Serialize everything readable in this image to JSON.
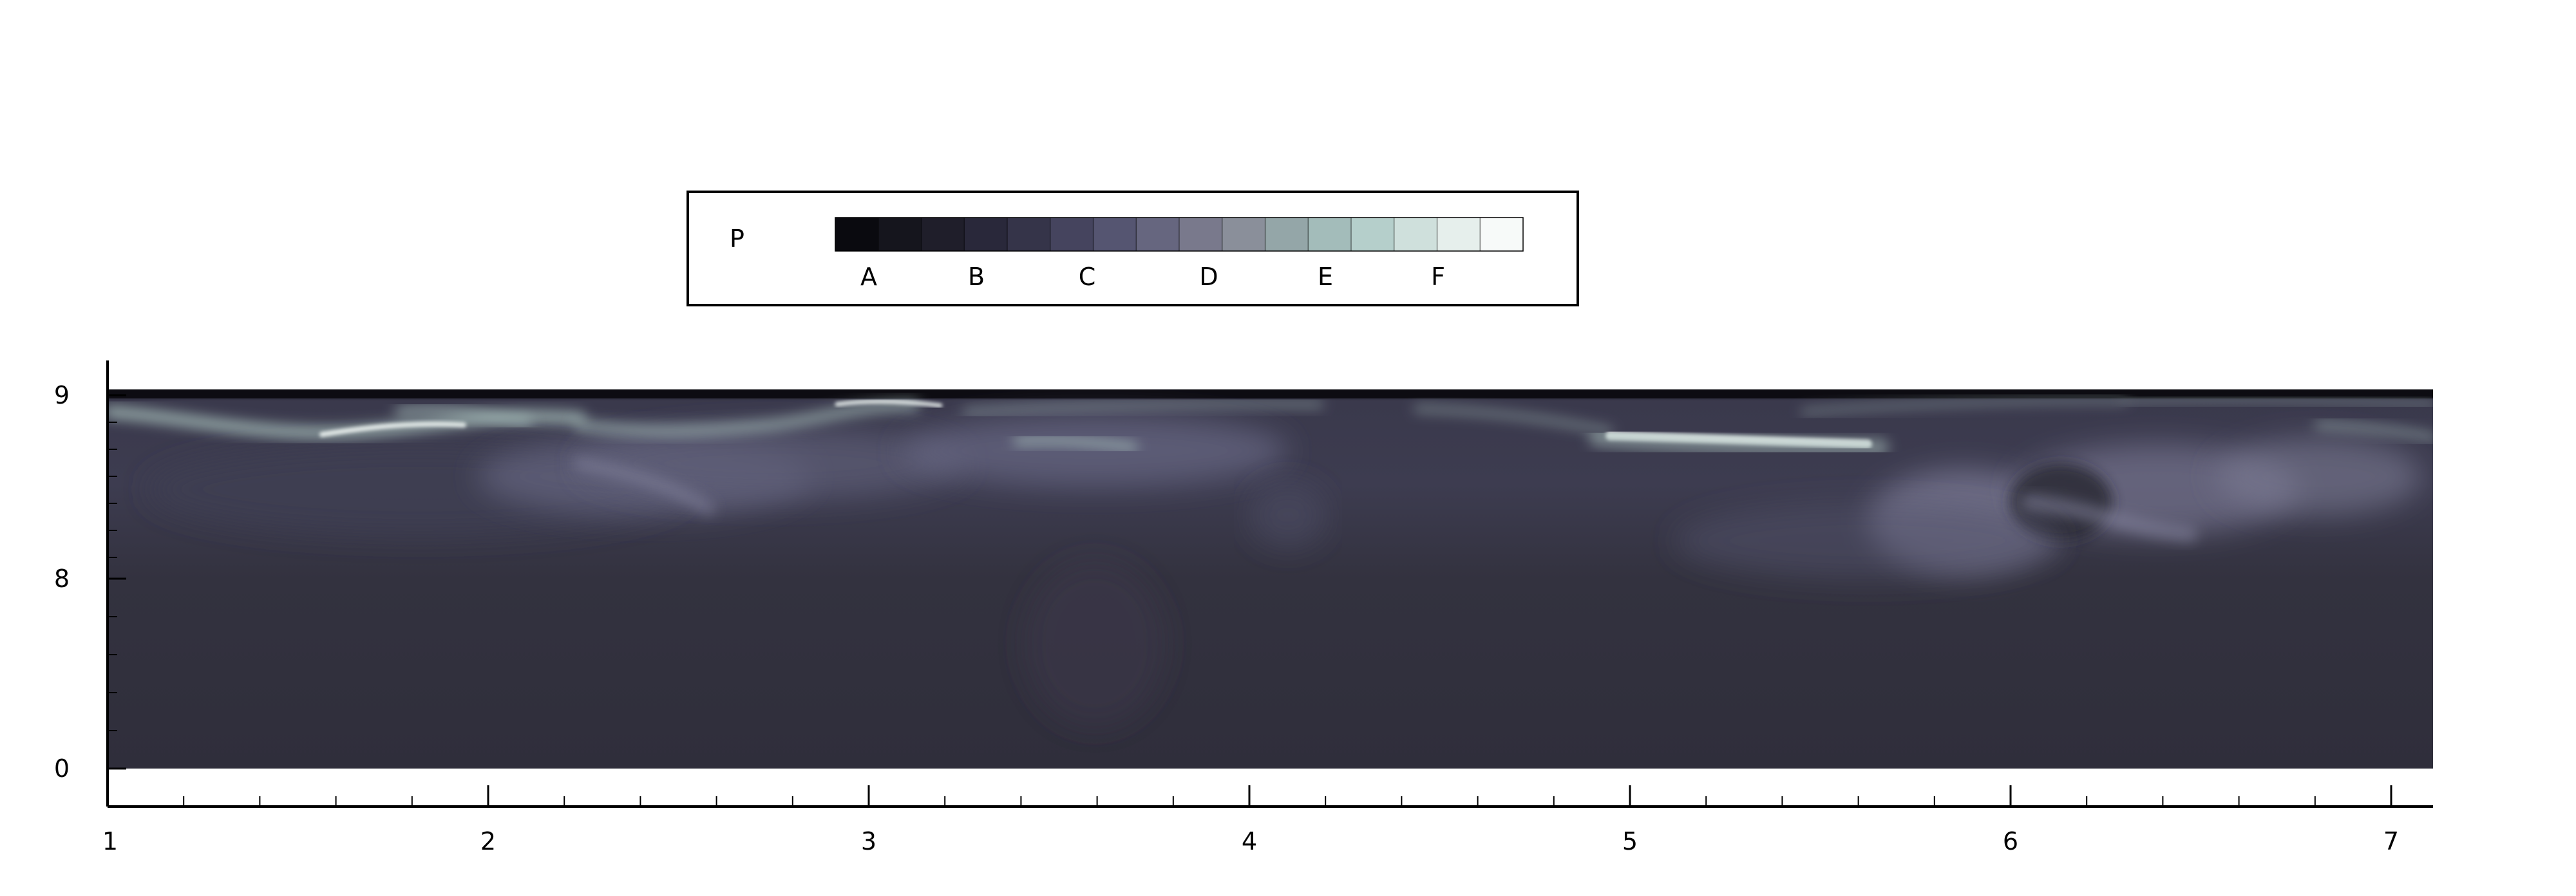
{
  "chart_data": {
    "type": "heatmap",
    "title": "",
    "xlabel": "",
    "ylabel": "",
    "xlim": [
      1,
      7.1
    ],
    "x_ticks": [
      "1",
      "2",
      "3",
      "4",
      "5",
      "6",
      "7"
    ],
    "y_ticks": [
      "0",
      "8",
      "9"
    ],
    "colorbar": {
      "label": "P",
      "tick_labels": [
        "A",
        "B",
        "C",
        "D",
        "E",
        "F"
      ],
      "colors": [
        "#0a0a0f",
        "#15151d",
        "#1f1e2a",
        "#29283a",
        "#353449",
        "#45445e",
        "#555571",
        "#66667f",
        "#79798c",
        "#8a8f9a",
        "#94a6a8",
        "#a3bcba",
        "#b5cfcb",
        "#cfe0dc",
        "#e6efec",
        "#f7faf9"
      ]
    },
    "field": {
      "description_color_base": "#2f2d3b",
      "colors": {
        "deep": "#2b2a36",
        "mid": "#3f3e52",
        "bright": "#a3b9b6",
        "white": "#eef4f2",
        "top": "#0d0c12"
      }
    }
  }
}
